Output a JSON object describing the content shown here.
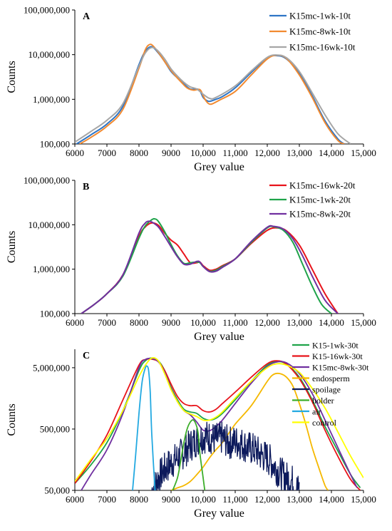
{
  "chart_data": [
    {
      "type": "line",
      "panel_label": "A",
      "xlabel": "Grey value",
      "ylabel": "Counts",
      "x_scale": "linear",
      "y_scale": "log",
      "xlim": [
        6000,
        15000
      ],
      "ylim": [
        100000,
        100000000
      ],
      "x_ticks": [
        6000,
        7000,
        8000,
        9000,
        10000,
        11000,
        12000,
        13000,
        14000,
        15000
      ],
      "x_tick_labels": [
        "6000",
        "7000",
        "8000",
        "9000",
        "10,000",
        "11,000",
        "12,000",
        "13,000",
        "14,000",
        "15,000"
      ],
      "y_ticks": [
        100000,
        1000000,
        10000000,
        100000000
      ],
      "y_tick_labels": [
        "100,000",
        "1,000,000",
        "10,000,000",
        "100,000,000"
      ],
      "legend_position": "top-right",
      "series": [
        {
          "name": "K15mc-1wk-10t",
          "color": "#2e75c6",
          "x": [
            6050,
            6500,
            7000,
            7500,
            8000,
            8200,
            8400,
            8600,
            8800,
            9000,
            9200,
            9400,
            9600,
            9800,
            9900,
            10000,
            10100,
            10200,
            10400,
            10600,
            11000,
            11500,
            12000,
            12300,
            12600,
            13000,
            13400,
            13800,
            14200,
            14400
          ],
          "y": [
            100000,
            160000,
            280000,
            700000,
            6000000,
            12000000,
            15000000,
            11000000,
            7000000,
            4200000,
            3000000,
            2200000,
            1700000,
            1700000,
            1550000,
            1100000,
            950000,
            900000,
            1000000,
            1150000,
            1800000,
            4000000,
            8500000,
            9500000,
            8000000,
            3800000,
            1200000,
            330000,
            130000,
            100000
          ]
        },
        {
          "name": "K15mc-8wk-10t",
          "color": "#f28a30",
          "x": [
            6150,
            6500,
            7000,
            7500,
            8000,
            8200,
            8350,
            8500,
            8700,
            8900,
            9100,
            9300,
            9500,
            9700,
            9900,
            10000,
            10100,
            10200,
            10300,
            10500,
            11000,
            11500,
            12000,
            12300,
            12600,
            13000,
            13400,
            13800,
            14200,
            14400
          ],
          "y": [
            100000,
            140000,
            250000,
            600000,
            5000000,
            13000000,
            17000000,
            14000000,
            9000000,
            5500000,
            3600000,
            2500000,
            1800000,
            1600000,
            1650000,
            1200000,
            900000,
            780000,
            800000,
            950000,
            1500000,
            3500000,
            8000000,
            9700000,
            8200000,
            3500000,
            1100000,
            300000,
            120000,
            100000
          ]
        },
        {
          "name": "K15mc-16wk-10t",
          "color": "#a6a6a6",
          "x": [
            6000,
            6500,
            7000,
            7500,
            8000,
            8200,
            8400,
            8600,
            8800,
            9000,
            9200,
            9400,
            9600,
            9800,
            10000,
            10200,
            10400,
            11000,
            11500,
            12000,
            12300,
            12600,
            13000,
            13400,
            13800,
            14200,
            14600
          ],
          "y": [
            110000,
            190000,
            340000,
            800000,
            5500000,
            11000000,
            14500000,
            12000000,
            8000000,
            4800000,
            3300000,
            2400000,
            1900000,
            1700000,
            1300000,
            1050000,
            1100000,
            2000000,
            4300000,
            8700000,
            9800000,
            8500000,
            4200000,
            1400000,
            450000,
            170000,
            100000
          ]
        }
      ]
    },
    {
      "type": "line",
      "panel_label": "B",
      "xlabel": "Grey value",
      "ylabel": "Counts",
      "x_scale": "linear",
      "y_scale": "log",
      "xlim": [
        6000,
        15000
      ],
      "ylim": [
        100000,
        100000000
      ],
      "x_ticks": [
        6000,
        7000,
        8000,
        9000,
        10000,
        11000,
        12000,
        13000,
        14000,
        15000
      ],
      "x_tick_labels": [
        "6000",
        "7000",
        "8000",
        "9000",
        "10,000",
        "11,000",
        "12,000",
        "13,000",
        "14,000",
        "15,000"
      ],
      "y_ticks": [
        100000,
        1000000,
        10000000,
        100000000
      ],
      "y_tick_labels": [
        "100,000",
        "1,000,000",
        "10,000,000",
        "100,000,000"
      ],
      "legend_position": "top-right",
      "series": [
        {
          "name": "K15mc-16wk-20t",
          "color": "#e8141b",
          "x": [
            6200,
            6600,
            7000,
            7500,
            8000,
            8200,
            8400,
            8600,
            8800,
            9000,
            9200,
            9400,
            9600,
            9800,
            9900,
            10000,
            10200,
            10400,
            10600,
            11000,
            11500,
            12000,
            12300,
            12600,
            13000,
            13400,
            13800,
            14200
          ],
          "y": [
            100000,
            160000,
            280000,
            750000,
            5500000,
            9000000,
            11000000,
            9800000,
            6500000,
            4500000,
            3500000,
            2200000,
            1400000,
            1400000,
            1450000,
            1200000,
            950000,
            1000000,
            1200000,
            1700000,
            3800000,
            7500000,
            8500000,
            7300000,
            3500000,
            1000000,
            280000,
            100000
          ]
        },
        {
          "name": "K15mc-1wk-20t",
          "color": "#1fa34a",
          "x": [
            6200,
            6600,
            7000,
            7500,
            8000,
            8200,
            8400,
            8500,
            8600,
            8800,
            9000,
            9200,
            9400,
            9600,
            9800,
            9900,
            10000,
            10200,
            10400,
            10600,
            11000,
            11500,
            12000,
            12200,
            12500,
            12800,
            13100,
            13400,
            13700,
            14000
          ],
          "y": [
            100000,
            160000,
            280000,
            700000,
            5000000,
            9500000,
            13000000,
            13500000,
            12000000,
            7000000,
            3600000,
            2000000,
            1350000,
            1400000,
            1450000,
            1400000,
            1150000,
            900000,
            950000,
            1150000,
            1700000,
            4000000,
            8500000,
            9000000,
            7500000,
            4000000,
            1300000,
            420000,
            160000,
            100000
          ]
        },
        {
          "name": "K15mc-8wk-20t",
          "color": "#7030a0",
          "x": [
            6200,
            6600,
            7000,
            7500,
            8000,
            8200,
            8300,
            8400,
            8600,
            8800,
            9000,
            9200,
            9400,
            9600,
            9800,
            9900,
            10000,
            10200,
            10400,
            10600,
            11000,
            11500,
            12000,
            12200,
            12500,
            12800,
            13100,
            13400,
            13800,
            14200
          ],
          "y": [
            100000,
            160000,
            280000,
            750000,
            6500000,
            11000000,
            12000000,
            11500000,
            9000000,
            5500000,
            3200000,
            1900000,
            1300000,
            1300000,
            1500000,
            1450000,
            1150000,
            880000,
            900000,
            1100000,
            1700000,
            4200000,
            8800000,
            9200000,
            8000000,
            4800000,
            2000000,
            700000,
            200000,
            100000
          ]
        }
      ]
    },
    {
      "type": "line",
      "panel_label": "C",
      "xlabel": "Grey value",
      "ylabel": "Counts",
      "x_scale": "linear",
      "y_scale": "log",
      "xlim": [
        6000,
        15000
      ],
      "ylim": [
        50000,
        10000000
      ],
      "x_ticks": [
        6000,
        7000,
        8000,
        9000,
        10000,
        11000,
        12000,
        13000,
        14000,
        15000
      ],
      "x_tick_labels": [
        "6000",
        "7000",
        "8000",
        "9000",
        "10,000",
        "11,000",
        "12,000",
        "13,000",
        "14,000",
        "15,000"
      ],
      "y_ticks": [
        50000,
        500000,
        5000000
      ],
      "y_tick_labels": [
        "50,000",
        "500,000",
        "5,000,000"
      ],
      "legend_position": "top-right",
      "series": [
        {
          "name": "K15-1wk-30t",
          "color": "#1fa34a",
          "x": [
            6000,
            6500,
            7000,
            7500,
            8000,
            8200,
            8400,
            8600,
            8800,
            9000,
            9200,
            9400,
            9600,
            9800,
            10000,
            10200,
            10400,
            10600,
            11000,
            11500,
            12000,
            12300,
            12600,
            13000,
            13400,
            13800,
            14200,
            14600,
            14900
          ],
          "y": [
            65000,
            130000,
            300000,
            1000000,
            4500000,
            6500000,
            7200000,
            6500000,
            4500000,
            2400000,
            1500000,
            1050000,
            950000,
            900000,
            750000,
            700000,
            750000,
            900000,
            1500000,
            3000000,
            5500000,
            6300000,
            5700000,
            3500000,
            1500000,
            550000,
            220000,
            90000,
            55000
          ]
        },
        {
          "name": "K15-16wk-30t",
          "color": "#e8141b",
          "x": [
            6000,
            6500,
            7000,
            7500,
            8000,
            8200,
            8400,
            8600,
            8800,
            9000,
            9200,
            9400,
            9600,
            9800,
            10000,
            10200,
            10400,
            10600,
            11000,
            11500,
            12000,
            12300,
            12600,
            13000,
            13400,
            13800,
            14200,
            14600,
            14900
          ],
          "y": [
            65000,
            150000,
            400000,
            1500000,
            5500000,
            6800000,
            6900000,
            6300000,
            4500000,
            2700000,
            1700000,
            1300000,
            1200000,
            1200000,
            1000000,
            950000,
            1050000,
            1300000,
            2000000,
            3500000,
            5800000,
            6500000,
            5700000,
            3300000,
            1400000,
            480000,
            180000,
            75000,
            50000
          ]
        },
        {
          "name": "K15mc-8wk-30t",
          "color": "#7030a0",
          "x": [
            6200,
            6500,
            7000,
            7500,
            8000,
            8200,
            8400,
            8600,
            8800,
            9000,
            9200,
            9400,
            9600,
            9800,
            10000,
            10200,
            10400,
            10600,
            11000,
            11500,
            12000,
            12300,
            12600,
            13000,
            13400,
            13800,
            14200,
            14600,
            14800
          ],
          "y": [
            50000,
            90000,
            230000,
            900000,
            5000000,
            6800000,
            7000000,
            6300000,
            4200000,
            2300000,
            1400000,
            1000000,
            850000,
            650000,
            480000,
            470000,
            550000,
            700000,
            1300000,
            2800000,
            5200000,
            6200000,
            6000000,
            4000000,
            1900000,
            700000,
            250000,
            90000,
            55000
          ]
        },
        {
          "name": "endosperm",
          "color": "#f5b800",
          "x": [
            9000,
            9200,
            9400,
            9600,
            9800,
            10000,
            10200,
            10400,
            10600,
            11000,
            11500,
            12000,
            12200,
            12400,
            12600,
            12800,
            13000,
            13200,
            13400,
            13600,
            13800,
            13900
          ],
          "y": [
            50000,
            55000,
            60000,
            70000,
            90000,
            120000,
            170000,
            230000,
            300000,
            600000,
            1200000,
            3000000,
            3900000,
            4000000,
            3500000,
            2500000,
            1300000,
            600000,
            250000,
            120000,
            60000,
            50000
          ]
        },
        {
          "name": "spoilage",
          "color": "#0d1a5c",
          "x": [
            8400,
            8600,
            8800,
            9000,
            9200,
            9400,
            9600,
            9800,
            10000,
            10200,
            10400,
            10600,
            10800,
            11000,
            11200,
            11400,
            11600,
            11800,
            12000,
            12200,
            12400,
            12600,
            12800,
            12900,
            13000
          ],
          "y": [
            50000,
            80000,
            110000,
            140000,
            170000,
            210000,
            270000,
            330000,
            380000,
            370000,
            340000,
            360000,
            300000,
            310000,
            290000,
            250000,
            230000,
            190000,
            170000,
            130000,
            95000,
            80000,
            70000,
            55000,
            50000
          ]
        },
        {
          "name": "holder",
          "color": "#3dae2b",
          "x": [
            9050,
            9200,
            9300,
            9400,
            9500,
            9600,
            9700,
            9800,
            9850,
            9900,
            10000,
            10050
          ],
          "y": [
            50000,
            80000,
            150000,
            300000,
            500000,
            650000,
            700000,
            550000,
            400000,
            200000,
            80000,
            50000
          ]
        },
        {
          "name": "air",
          "color": "#23a9e1",
          "x": [
            7800,
            7900,
            8000,
            8100,
            8200,
            8250,
            8300,
            8350,
            8400,
            8500
          ],
          "y": [
            50000,
            200000,
            900000,
            3000000,
            5000000,
            5300000,
            4500000,
            2000000,
            400000,
            50000
          ]
        },
        {
          "name": "control",
          "color": "#ffff00",
          "x": [
            6000,
            6500,
            7000,
            7500,
            8000,
            8200,
            8400,
            8600,
            8800,
            9000,
            9200,
            9400,
            9600,
            9800,
            10000,
            10200,
            10400,
            10600,
            11000,
            11500,
            12000,
            12300,
            12600,
            13000,
            13400,
            13800,
            14200,
            14600,
            15000
          ],
          "y": [
            70000,
            160000,
            350000,
            1000000,
            3600000,
            5500000,
            7200000,
            6500000,
            4000000,
            2200000,
            1400000,
            1000000,
            880000,
            800000,
            700000,
            700000,
            780000,
            950000,
            1600000,
            3000000,
            5000000,
            5800000,
            5500000,
            4200000,
            2300000,
            1100000,
            450000,
            180000,
            80000
          ]
        }
      ]
    }
  ]
}
